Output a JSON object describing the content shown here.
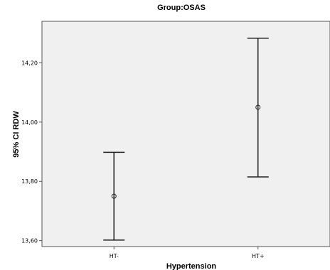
{
  "chart_data": {
    "type": "errorbar",
    "title": "Group:OSAS",
    "xlabel": "Hypertension",
    "ylabel": "95% CI RDW",
    "categories": [
      "HT-",
      "HT+"
    ],
    "points": [
      {
        "category": "HT-",
        "mean": 13.75,
        "lower": 13.602,
        "upper": 13.898
      },
      {
        "category": "HT+",
        "mean": 14.05,
        "lower": 13.815,
        "upper": 14.283
      }
    ],
    "ylim": [
      13.58,
      14.34
    ],
    "yticks": [
      {
        "value": 13.6,
        "label": "13,60"
      },
      {
        "value": 13.8,
        "label": "13,80"
      },
      {
        "value": 14.0,
        "label": "14,00"
      },
      {
        "value": 14.2,
        "label": "14,20"
      }
    ],
    "grid": false,
    "legend": "none",
    "colors": {
      "plot_background": "#f0f0f0",
      "frame": "#555555",
      "bar": "#222222"
    }
  }
}
